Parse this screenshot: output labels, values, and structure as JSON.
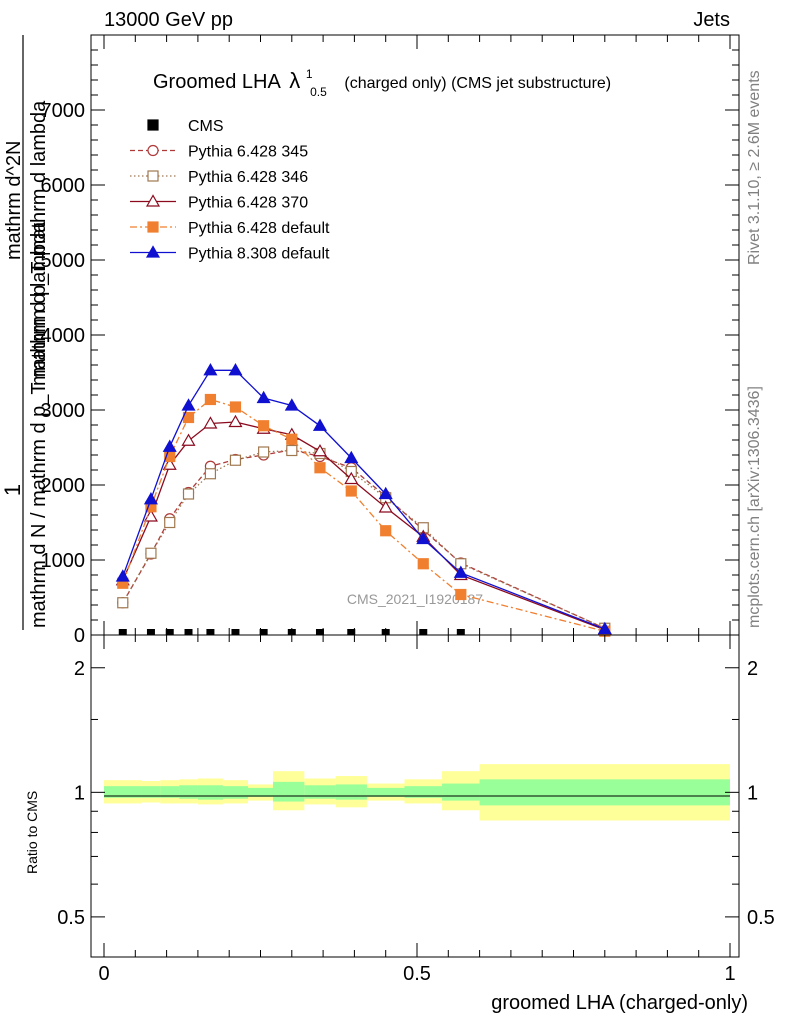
{
  "header": {
    "energy": "13000 GeV pp",
    "process": "Jets"
  },
  "side_labels": {
    "rivet": "Rivet 3.1.10, ≥ 2.6M events",
    "mcplots": "mcplots.cern.ch [arXiv:1306.3436]"
  },
  "chart_data": [
    {
      "type": "line",
      "title": "Groomed LHA",
      "title_symbol": "λ",
      "title_sup": "1",
      "title_sub": "0.5",
      "subtitle": "(charged only) (CMS jet substructure)",
      "watermark": "CMS_2021_I1920187",
      "ylabel_num": "1",
      "ylabel_den": "mathrm d N / mathrm d p_T mathrm d lambda",
      "ylabel_right_num": "mathrm d^2N",
      "ylabel_right_den": "mathrm d p_T mathrm d lambda",
      "xlim": [
        -0.04,
        1.0
      ],
      "ylim": [
        0,
        8000
      ],
      "y_ticks": [
        0,
        1000,
        2000,
        3000,
        4000,
        5000,
        6000,
        7000
      ],
      "y_tick_labels": [
        "0",
        "1000",
        "2000",
        "3000",
        "4000",
        "5000",
        "6000",
        "7000"
      ],
      "legend_placement": "top-left",
      "x": [
        0.03,
        0.075,
        0.105,
        0.135,
        0.17,
        0.21,
        0.255,
        0.3,
        0.345,
        0.395,
        0.45,
        0.51,
        0.57,
        0.8
      ],
      "series": [
        {
          "name": "CMS",
          "color": "#000000",
          "marker": "square-filled",
          "dash": "none",
          "values": [
            0,
            0,
            0,
            0,
            0,
            0,
            0,
            0,
            0,
            0,
            0,
            0,
            0,
            0
          ]
        },
        {
          "name": "Pythia 6.428 345",
          "color": "#b03a3a",
          "marker": "circle-open",
          "dash": "dashed",
          "values": [
            430,
            1080,
            1550,
            1900,
            2250,
            2340,
            2400,
            2470,
            2380,
            2230,
            1850,
            1400,
            960,
            90
          ]
        },
        {
          "name": "Pythia 6.428 346",
          "color": "#a07850",
          "marker": "square-open",
          "dash": "dotted",
          "values": [
            430,
            1090,
            1500,
            1880,
            2150,
            2330,
            2440,
            2460,
            2420,
            2180,
            1830,
            1430,
            950,
            90
          ]
        },
        {
          "name": "Pythia 6.428 370",
          "color": "#8b0a1e",
          "marker": "triangle-open",
          "dash": "solid",
          "values": [
            730,
            1580,
            2270,
            2590,
            2820,
            2840,
            2750,
            2670,
            2450,
            2080,
            1700,
            1310,
            800,
            70
          ]
        },
        {
          "name": "Pythia 6.428 default",
          "color": "#f08030",
          "marker": "square-filled",
          "dash": "dashdot",
          "values": [
            690,
            1710,
            2380,
            2900,
            3140,
            3040,
            2790,
            2610,
            2230,
            1920,
            1390,
            950,
            540,
            50
          ]
        },
        {
          "name": "Pythia 8.308 default",
          "color": "#1010d0",
          "marker": "triangle-filled",
          "dash": "solid",
          "values": [
            780,
            1810,
            2510,
            3060,
            3530,
            3530,
            3160,
            3060,
            2790,
            2360,
            1880,
            1280,
            830,
            80
          ]
        }
      ]
    },
    {
      "type": "area",
      "ylabel": "Ratio to CMS",
      "xlabel": "groomed LHA (charged-only)",
      "xlim": [
        -0.04,
        1.0
      ],
      "ylim": [
        0.4,
        2.4
      ],
      "scale": "log",
      "y_ticks": [
        0.5,
        1,
        2
      ],
      "y_tick_labels": [
        "0.5",
        "1",
        "2"
      ],
      "x_ticks": [
        0,
        0.5,
        1
      ],
      "x_tick_labels": [
        "0",
        "0.5",
        "1"
      ],
      "colors": {
        "inner": "#99ff99",
        "outer": "#ffff99"
      },
      "bins": [
        {
          "lo": 0.0,
          "hi": 0.06,
          "inner": [
            0.97,
            1.035
          ],
          "outer": [
            0.94,
            1.07
          ]
        },
        {
          "lo": 0.06,
          "hi": 0.09,
          "inner": [
            0.97,
            1.035
          ],
          "outer": [
            0.945,
            1.065
          ]
        },
        {
          "lo": 0.09,
          "hi": 0.12,
          "inner": [
            0.97,
            1.035
          ],
          "outer": [
            0.94,
            1.07
          ]
        },
        {
          "lo": 0.12,
          "hi": 0.15,
          "inner": [
            0.965,
            1.04
          ],
          "outer": [
            0.94,
            1.075
          ]
        },
        {
          "lo": 0.15,
          "hi": 0.19,
          "inner": [
            0.96,
            1.04
          ],
          "outer": [
            0.935,
            1.08
          ]
        },
        {
          "lo": 0.19,
          "hi": 0.23,
          "inner": [
            0.965,
            1.035
          ],
          "outer": [
            0.94,
            1.07
          ]
        },
        {
          "lo": 0.23,
          "hi": 0.27,
          "inner": [
            0.975,
            1.025
          ],
          "outer": [
            0.955,
            1.045
          ]
        },
        {
          "lo": 0.27,
          "hi": 0.32,
          "inner": [
            0.95,
            1.06
          ],
          "outer": [
            0.905,
            1.125
          ]
        },
        {
          "lo": 0.32,
          "hi": 0.37,
          "inner": [
            0.965,
            1.04
          ],
          "outer": [
            0.935,
            1.08
          ]
        },
        {
          "lo": 0.37,
          "hi": 0.42,
          "inner": [
            0.96,
            1.045
          ],
          "outer": [
            0.92,
            1.095
          ]
        },
        {
          "lo": 0.42,
          "hi": 0.48,
          "inner": [
            0.975,
            1.025
          ],
          "outer": [
            0.955,
            1.05
          ]
        },
        {
          "lo": 0.48,
          "hi": 0.54,
          "inner": [
            0.97,
            1.035
          ],
          "outer": [
            0.94,
            1.075
          ]
        },
        {
          "lo": 0.54,
          "hi": 0.6,
          "inner": [
            0.955,
            1.05
          ],
          "outer": [
            0.905,
            1.125
          ]
        },
        {
          "lo": 0.6,
          "hi": 1.0,
          "inner": [
            0.93,
            1.075
          ],
          "outer": [
            0.855,
            1.17
          ]
        }
      ]
    }
  ]
}
